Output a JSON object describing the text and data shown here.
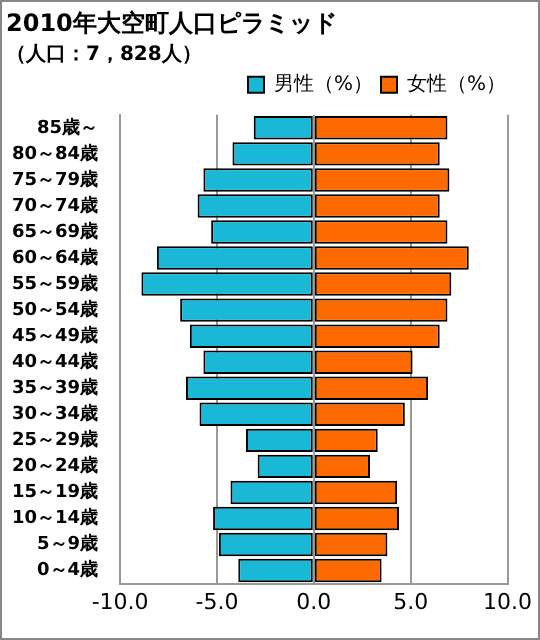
{
  "chart_data": {
    "type": "bar",
    "orientation": "horizontal",
    "stacked": true,
    "title": "2010年大空町人口ピラミッド",
    "subtitle": "（人口：7，828人）",
    "categories": [
      "85歳～",
      "80～84歳",
      "75～79歳",
      "70～74歳",
      "65～69歳",
      "60～64歳",
      "55～59歳",
      "50～54歳",
      "45～49歳",
      "40～44歳",
      "35～39歳",
      "30～34歳",
      "25～29歳",
      "20～24歳",
      "15～19歳",
      "10～14歳",
      "5～9歳",
      "0～4歳"
    ],
    "series": [
      {
        "name": "男性（%）",
        "color": "#19b8d6",
        "values": [
          -3.1,
          -4.2,
          -5.7,
          -6.0,
          -5.3,
          -8.1,
          -8.9,
          -6.9,
          -6.4,
          -5.7,
          -6.6,
          -5.9,
          -3.5,
          -2.9,
          -4.3,
          -5.2,
          -4.9,
          -3.9
        ]
      },
      {
        "name": "女性（%）",
        "color": "#ff6a00",
        "values": [
          6.9,
          6.5,
          7.0,
          6.5,
          6.9,
          8.0,
          7.1,
          6.9,
          6.5,
          5.1,
          5.9,
          4.7,
          3.3,
          2.9,
          4.3,
          4.4,
          3.8,
          3.5
        ]
      }
    ],
    "xlim": [
      -10,
      10
    ],
    "xticks": [
      {
        "value": -10,
        "label": "-10.0"
      },
      {
        "value": -5,
        "label": "-5.0"
      },
      {
        "value": 0,
        "label": "0.0"
      },
      {
        "value": 5,
        "label": "5.0"
      },
      {
        "value": 10,
        "label": "10.0"
      }
    ],
    "grid": "x",
    "legend": "top right"
  }
}
